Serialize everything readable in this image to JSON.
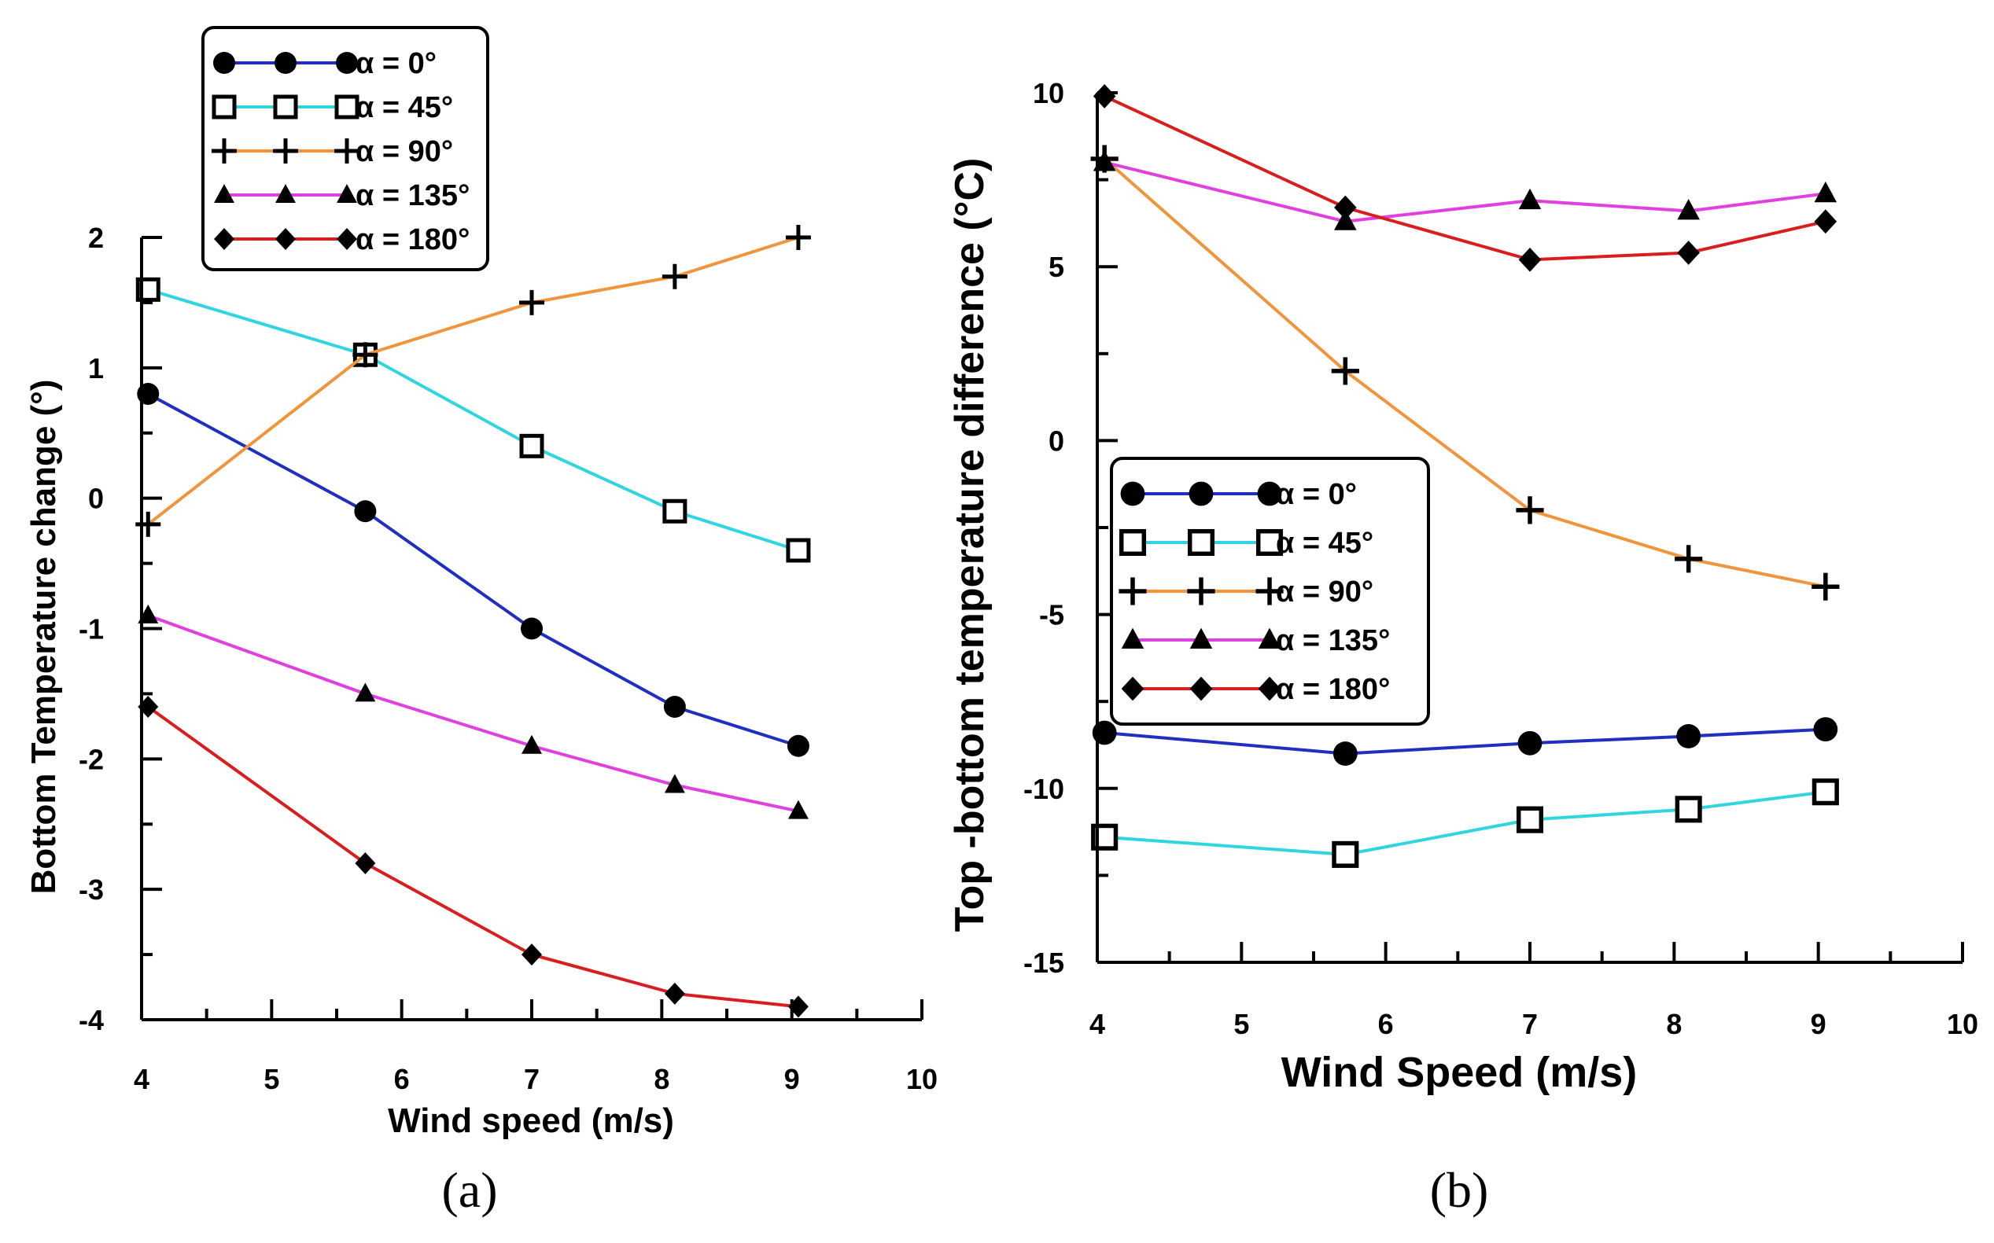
{
  "chart_data": [
    {
      "type": "line",
      "panel_label": "(a)",
      "xlabel": "Wind speed (m/s)",
      "ylabel": "Bottom Temperature change (°)",
      "xlim": [
        4,
        10
      ],
      "ylim": [
        -4,
        2
      ],
      "x_ticks": [
        4,
        5,
        6,
        7,
        8,
        9,
        10
      ],
      "y_ticks": [
        -4,
        -3,
        -2,
        -1,
        0,
        1,
        2
      ],
      "legend_position": "top-left",
      "x": [
        4.05,
        5.72,
        7.0,
        8.1,
        9.05
      ],
      "series": [
        {
          "name": "α = 0°",
          "color": "#1f2fbf",
          "marker": "circle",
          "values": [
            0.8,
            -0.1,
            -1.0,
            -1.6,
            -1.9
          ]
        },
        {
          "name": "α = 45°",
          "color": "#30d5e0",
          "marker": "square",
          "values": [
            1.6,
            1.1,
            0.4,
            -0.1,
            -0.4
          ]
        },
        {
          "name": "α = 90°",
          "color": "#f0953c",
          "marker": "plus",
          "values": [
            -0.2,
            1.1,
            1.5,
            1.7,
            2.0
          ]
        },
        {
          "name": "α = 135°",
          "color": "#e040e0",
          "marker": "triangle",
          "values": [
            -0.9,
            -1.5,
            -1.9,
            -2.2,
            -2.4
          ]
        },
        {
          "name": "α = 180°",
          "color": "#d81e1e",
          "marker": "diamond",
          "values": [
            -1.6,
            -2.8,
            -3.5,
            -3.8,
            -3.9
          ]
        }
      ]
    },
    {
      "type": "line",
      "panel_label": "(b)",
      "xlabel": "Wind Speed (m/s)",
      "ylabel": "Top -bottom temperature difference (°C)",
      "xlim": [
        4,
        10
      ],
      "ylim": [
        -15,
        10
      ],
      "x_ticks": [
        4,
        5,
        6,
        7,
        8,
        9,
        10
      ],
      "y_ticks": [
        -15,
        -10,
        -5,
        0,
        5,
        10
      ],
      "legend_position": "center-left",
      "x": [
        4.05,
        5.72,
        7.0,
        8.1,
        9.05
      ],
      "series": [
        {
          "name": "α = 0°",
          "color": "#1f2fbf",
          "marker": "circle",
          "values": [
            -8.4,
            -9.0,
            -8.7,
            -8.5,
            -8.3
          ]
        },
        {
          "name": "α = 45°",
          "color": "#30d5e0",
          "marker": "square",
          "values": [
            -11.4,
            -11.9,
            -10.9,
            -10.6,
            -10.1
          ]
        },
        {
          "name": "α = 90°",
          "color": "#f0953c",
          "marker": "plus",
          "values": [
            8.1,
            2.0,
            -2.0,
            -3.4,
            -4.2
          ]
        },
        {
          "name": "α = 135°",
          "color": "#e040e0",
          "marker": "triangle",
          "values": [
            8.0,
            6.3,
            6.9,
            6.6,
            7.1
          ]
        },
        {
          "name": "α = 180°",
          "color": "#d81e1e",
          "marker": "diamond",
          "values": [
            9.9,
            6.7,
            5.2,
            5.4,
            6.3
          ]
        }
      ]
    }
  ]
}
